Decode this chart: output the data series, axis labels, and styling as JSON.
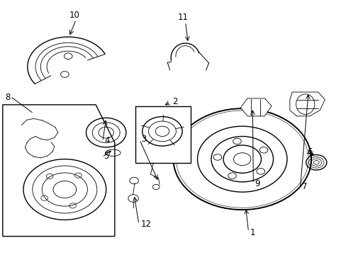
{
  "bg_color": "#ffffff",
  "line_color": "#000000",
  "figsize": [
    4.89,
    3.6
  ],
  "dpi": 100,
  "lw_thin": 0.6,
  "lw_med": 1.0,
  "lw_thick": 1.4
}
